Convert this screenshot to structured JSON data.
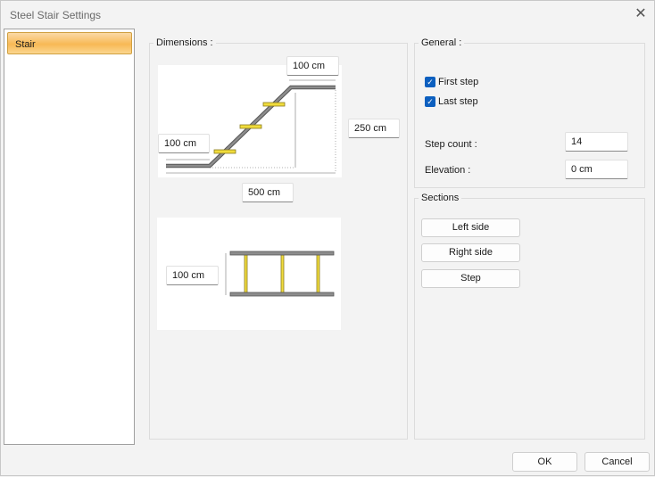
{
  "window": {
    "title": "Steel Stair Settings"
  },
  "sidebar": {
    "items": [
      {
        "label": "Stair"
      }
    ]
  },
  "dimensions": {
    "label": "Dimensions :",
    "top_length": "100 cm",
    "height": "250 cm",
    "bottom_length": "100 cm",
    "total_length": "500 cm",
    "width": "100 cm"
  },
  "general": {
    "label": "General :",
    "first_step": {
      "label": "First step",
      "checked": true
    },
    "last_step": {
      "label": "Last step",
      "checked": true
    },
    "step_count_label": "Step count :",
    "step_count": "14",
    "elevation_label": "Elevation :",
    "elevation": "0 cm"
  },
  "sections": {
    "label": "Sections",
    "buttons": [
      "Left side",
      "Right side",
      "Step"
    ]
  },
  "footer": {
    "ok": "OK",
    "cancel": "Cancel"
  },
  "colors": {
    "step": "#f0dc3c",
    "steel": "#808080",
    "accent": "#0c5fbf"
  }
}
